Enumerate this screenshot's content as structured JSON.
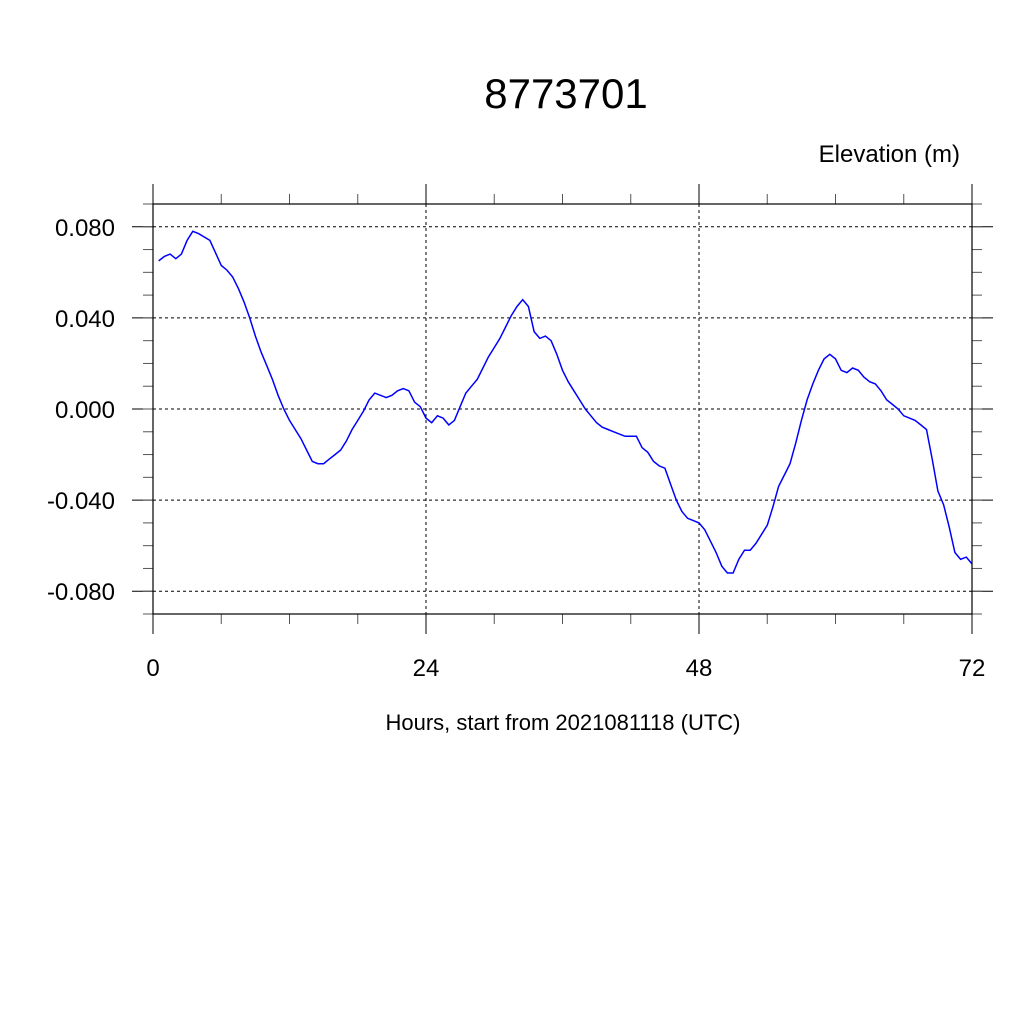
{
  "chart_data": {
    "type": "line",
    "title": "8773701",
    "ylabel": "Elevation (m)",
    "xlabel": "Hours, start from 2021081118 (UTC)",
    "xlim": [
      0,
      72
    ],
    "ylim": [
      -0.09,
      0.09
    ],
    "xticks": [
      0,
      24,
      48,
      72
    ],
    "xtick_labels": [
      "0",
      "24",
      "48",
      "72"
    ],
    "yticks": [
      0.08,
      0.04,
      0.0,
      -0.04,
      -0.08
    ],
    "ytick_labels": [
      "0.080",
      "0.040",
      "0.000",
      "-0.040",
      "-0.080"
    ],
    "grid": true,
    "series": [
      {
        "color": "#0000ff",
        "x": [
          0.5,
          1.0,
          1.5,
          2.0,
          2.5,
          3.0,
          3.5,
          4.0,
          5.0,
          6.0,
          6.5,
          7.0,
          7.5,
          8.0,
          8.5,
          9.0,
          9.5,
          10.0,
          10.5,
          11.0,
          11.5,
          12.0,
          12.5,
          13.0,
          13.5,
          14.0,
          14.5,
          15.0,
          15.5,
          16.0,
          16.5,
          17.0,
          17.5,
          18.0,
          18.5,
          19.0,
          19.5,
          20.0,
          20.5,
          21.0,
          21.5,
          22.0,
          22.5,
          23.0,
          23.5,
          24.0,
          24.5,
          25.0,
          25.5,
          26.0,
          26.5,
          27.0,
          27.5,
          28.0,
          28.5,
          29.0,
          29.5,
          30.0,
          30.5,
          31.0,
          31.5,
          32.0,
          32.5,
          33.0,
          33.5,
          34.0,
          34.5,
          35.0,
          35.5,
          36.0,
          36.5,
          37.0,
          37.5,
          38.0,
          38.5,
          39.0,
          39.5,
          40.0,
          40.5,
          41.0,
          41.5,
          42.0,
          42.5,
          43.0,
          43.5,
          44.0,
          44.5,
          45.0,
          45.5,
          46.0,
          46.5,
          47.0,
          47.5,
          48.0,
          48.5,
          49.0,
          49.5,
          50.0,
          50.5,
          51.0,
          51.5,
          52.0,
          52.5,
          53.0,
          53.5,
          54.0,
          54.5,
          55.0,
          55.5,
          56.0,
          56.5,
          57.0,
          57.5,
          58.0,
          58.5,
          59.0,
          59.5,
          60.0,
          60.5,
          61.0,
          61.5,
          62.0,
          62.5,
          63.0,
          63.5,
          64.0,
          64.5,
          65.0,
          65.5,
          66.0,
          66.5,
          67.0,
          67.5,
          68.0,
          68.5,
          69.0,
          69.5,
          70.0,
          70.5,
          71.0,
          71.5,
          72.0
        ],
        "y": [
          0.065,
          0.067,
          0.068,
          0.066,
          0.068,
          0.074,
          0.078,
          0.077,
          0.074,
          0.063,
          0.061,
          0.058,
          0.053,
          0.047,
          0.04,
          0.032,
          0.025,
          0.019,
          0.013,
          0.006,
          0.0,
          -0.005,
          -0.009,
          -0.013,
          -0.018,
          -0.023,
          -0.024,
          -0.024,
          -0.022,
          -0.02,
          -0.018,
          -0.014,
          -0.009,
          -0.005,
          -0.001,
          0.004,
          0.007,
          0.006,
          0.005,
          0.006,
          0.008,
          0.009,
          0.008,
          0.003,
          0.001,
          -0.004,
          -0.006,
          -0.003,
          -0.004,
          -0.007,
          -0.005,
          0.001,
          0.007,
          0.01,
          0.013,
          0.018,
          0.023,
          0.027,
          0.031,
          0.036,
          0.041,
          0.045,
          0.048,
          0.045,
          0.034,
          0.031,
          0.032,
          0.03,
          0.024,
          0.017,
          0.012,
          0.008,
          0.004,
          0.0,
          -0.003,
          -0.006,
          -0.008,
          -0.009,
          -0.01,
          -0.011,
          -0.012,
          -0.012,
          -0.012,
          -0.017,
          -0.019,
          -0.023,
          -0.025,
          -0.026,
          -0.033,
          -0.04,
          -0.045,
          -0.048,
          -0.049,
          -0.05,
          -0.053,
          -0.058,
          -0.063,
          -0.069,
          -0.072,
          -0.072,
          -0.066,
          -0.062,
          -0.062,
          -0.059,
          -0.055,
          -0.051,
          -0.043,
          -0.034,
          -0.029,
          -0.024,
          -0.015,
          -0.005,
          0.004,
          0.011,
          0.017,
          0.022,
          0.024,
          0.022,
          0.017,
          0.016,
          0.018,
          0.017,
          0.014,
          0.012,
          0.011,
          0.008,
          0.004,
          0.002,
          0.0,
          -0.003,
          -0.004,
          -0.005,
          -0.007,
          -0.009,
          -0.022,
          -0.036,
          -0.042,
          -0.052,
          -0.063,
          -0.066,
          -0.065,
          -0.068
        ]
      }
    ]
  }
}
